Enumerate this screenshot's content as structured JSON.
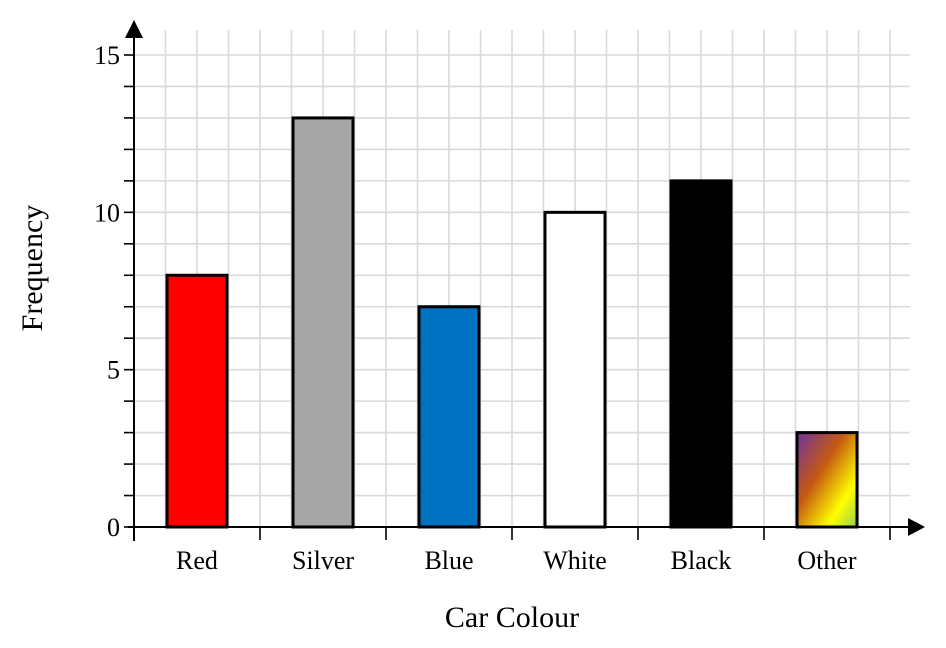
{
  "chart_data": {
    "type": "bar",
    "xlabel": "Car Colour",
    "ylabel": "Frequency",
    "categories": [
      "Red",
      "Silver",
      "Blue",
      "White",
      "Black",
      "Other"
    ],
    "values": [
      8,
      13,
      7,
      10,
      11,
      3
    ],
    "bar_colors": [
      "#ff0000",
      "#a6a6a6",
      "#0070c0",
      "#ffffff",
      "#000000",
      "gradient"
    ],
    "other_gradient_colors": [
      "#7030a0",
      "#c55a11",
      "#ffff00",
      "#92d050"
    ],
    "ylim": [
      0,
      15
    ],
    "y_ticks": [
      "0",
      "5",
      "10",
      "15"
    ],
    "grid": true
  }
}
